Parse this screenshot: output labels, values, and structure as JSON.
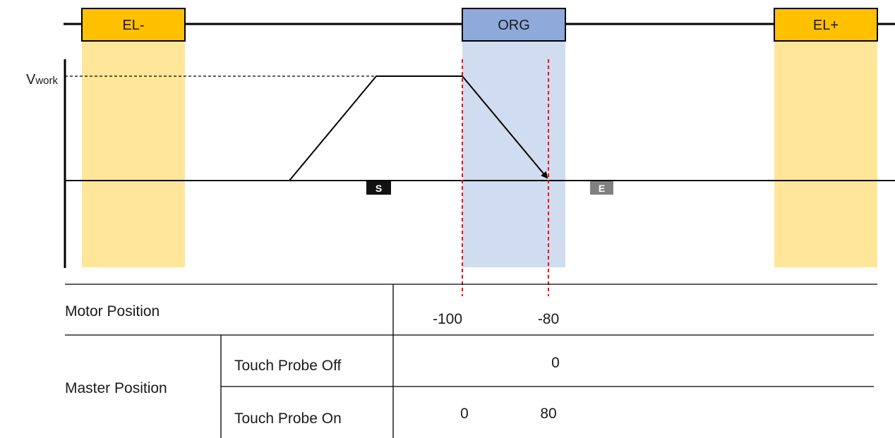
{
  "boxes": {
    "el_minus": "EL-",
    "org": "ORG",
    "el_plus": "EL+"
  },
  "velocity": {
    "label_main": "V",
    "label_sub": "work"
  },
  "markers": {
    "start": "S",
    "end": "E"
  },
  "table": {
    "motor_position": {
      "label": "Motor Position",
      "values": [
        "-100",
        "-80"
      ]
    },
    "master_position": {
      "label": "Master Position",
      "touch_probe_off": {
        "label": "Touch Probe Off",
        "values": [
          "0"
        ]
      },
      "touch_probe_on": {
        "label": "Touch Probe On",
        "values": [
          "0",
          "80"
        ]
      }
    }
  },
  "colors": {
    "limit_fill": "#ffc000",
    "limit_zone": "#ffe699",
    "org_fill": "#8eaadb",
    "org_zone": "#d0dcf0",
    "dashed_red": "#ff0000",
    "start_marker": "#111111",
    "end_marker": "#808080"
  }
}
